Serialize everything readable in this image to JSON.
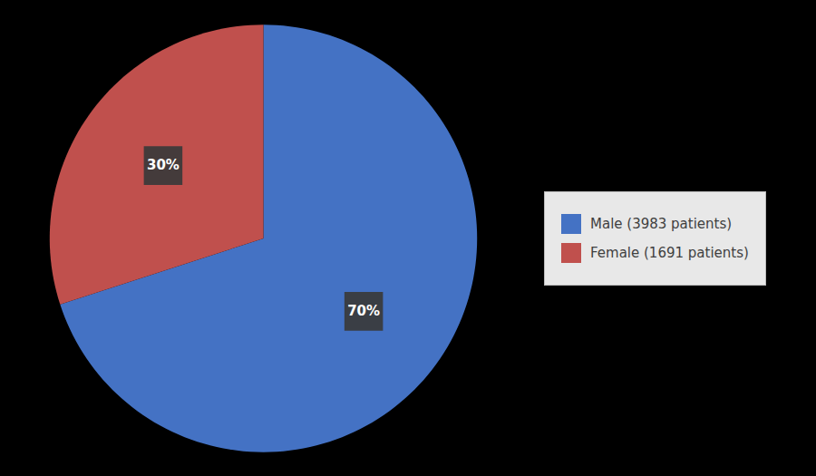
{
  "chart_data": {
    "type": "pie",
    "categories": [
      "Male (3983 patients)",
      "Female (1691 patients)"
    ],
    "values": [
      70,
      30
    ],
    "value_labels": [
      "70%",
      "30%"
    ],
    "colors": [
      "#4472C4",
      "#C0504D"
    ],
    "data_labels": true,
    "legend": "right"
  }
}
